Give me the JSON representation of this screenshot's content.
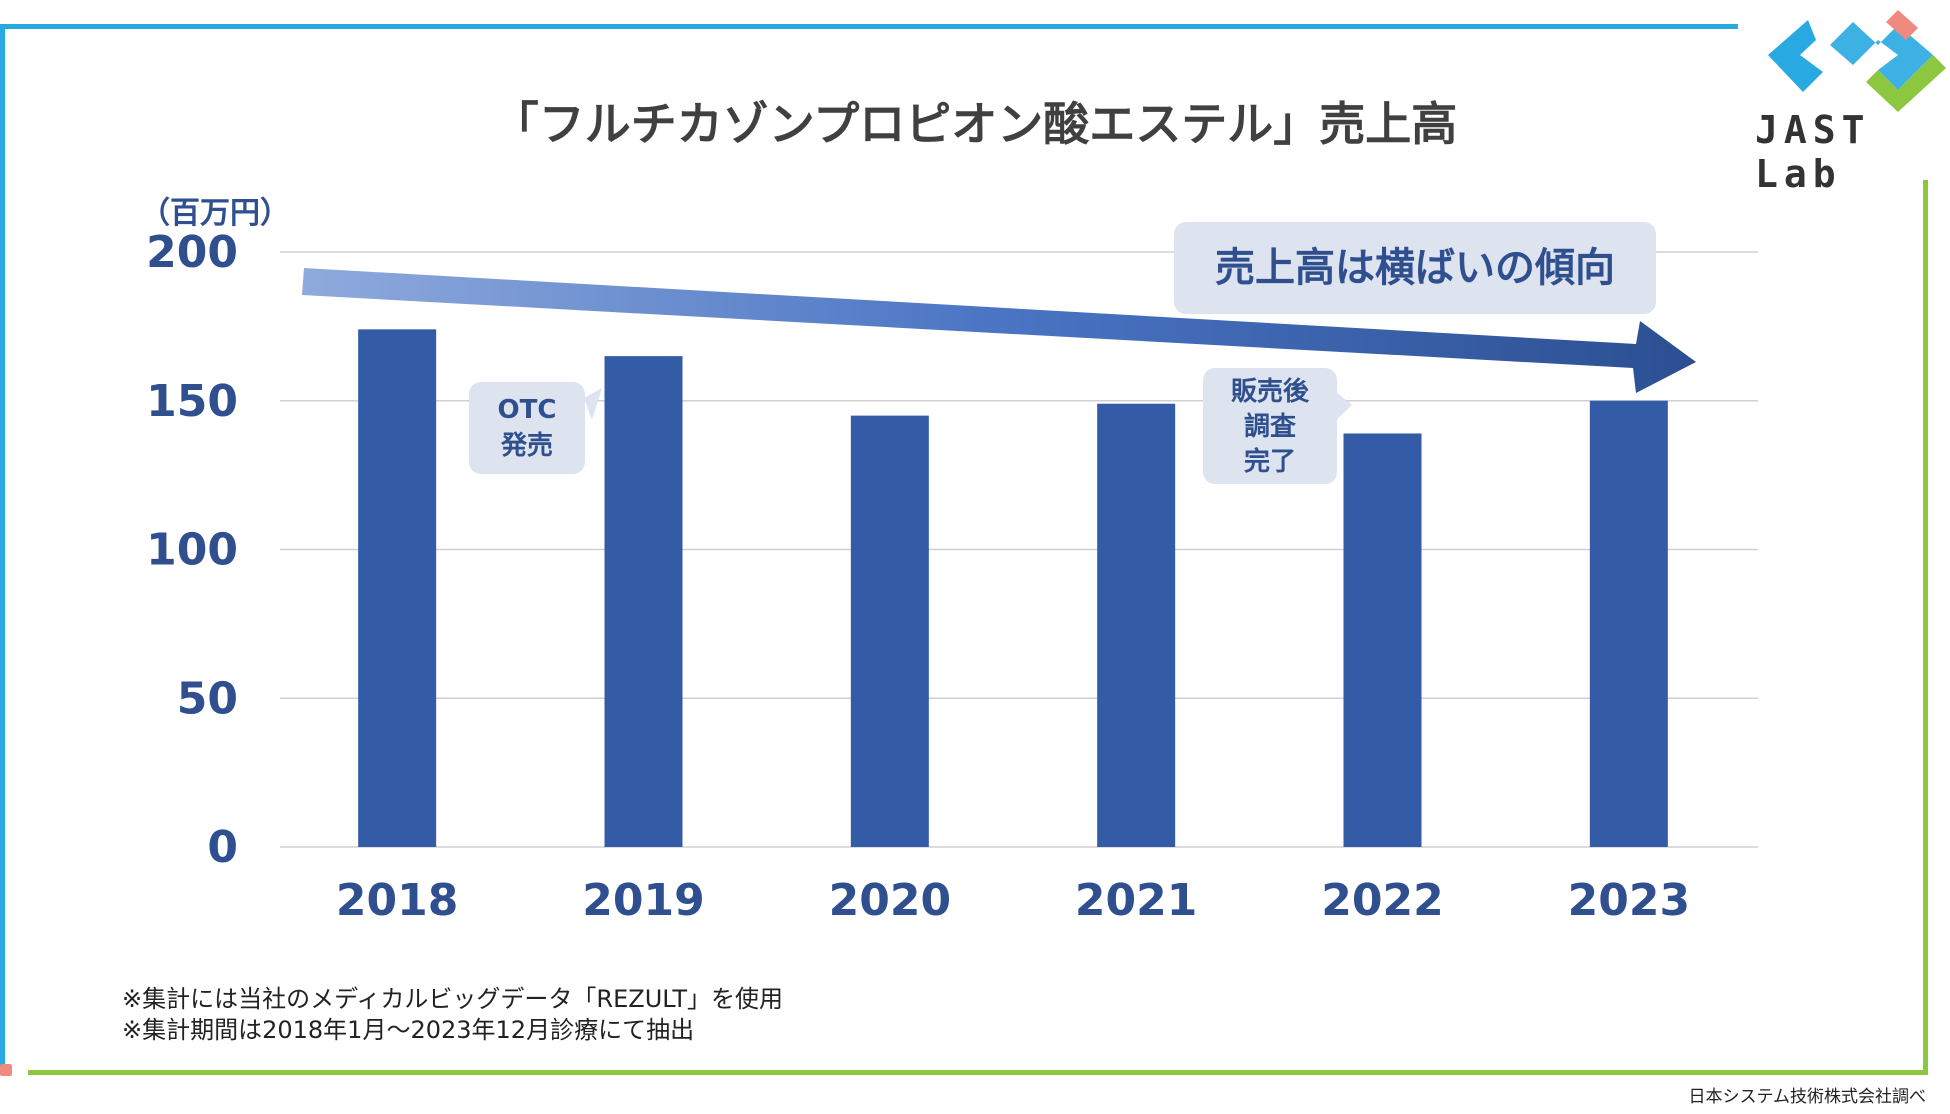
{
  "title": "「フルチカゾンプロピオン酸エステル」売上高",
  "logo": {
    "text": "JAST Lab",
    "colors": [
      "#29a9e1",
      "#8dc63f",
      "#f08a7e"
    ]
  },
  "chart_data": {
    "type": "bar",
    "title": "「フルチカゾンプロピオン酸エステル」売上高",
    "ylabel": "（百万円）",
    "xlabel": "",
    "categories": [
      "2018",
      "2019",
      "2020",
      "2021",
      "2022",
      "2023"
    ],
    "values": [
      174,
      165,
      145,
      149,
      139,
      150
    ],
    "ylim": [
      0,
      200
    ],
    "yticks": [
      "0",
      "50",
      "100",
      "150",
      "200"
    ],
    "grid": true,
    "bar_color": "#345ba6",
    "tick_color": "#2f4f8f",
    "annotations": {
      "trend": "売上高は横ばいの傾向",
      "otc": [
        "OTC",
        "発売"
      ],
      "survey": [
        "販売後",
        "調査",
        "完了"
      ]
    }
  },
  "footnotes": [
    "※集計には当社のメディカルビッグデータ「REZULT」を使用",
    "※集計期間は2018年1月～2023年12月診療にて抽出"
  ],
  "source": "日本システム技術株式会社調べ"
}
